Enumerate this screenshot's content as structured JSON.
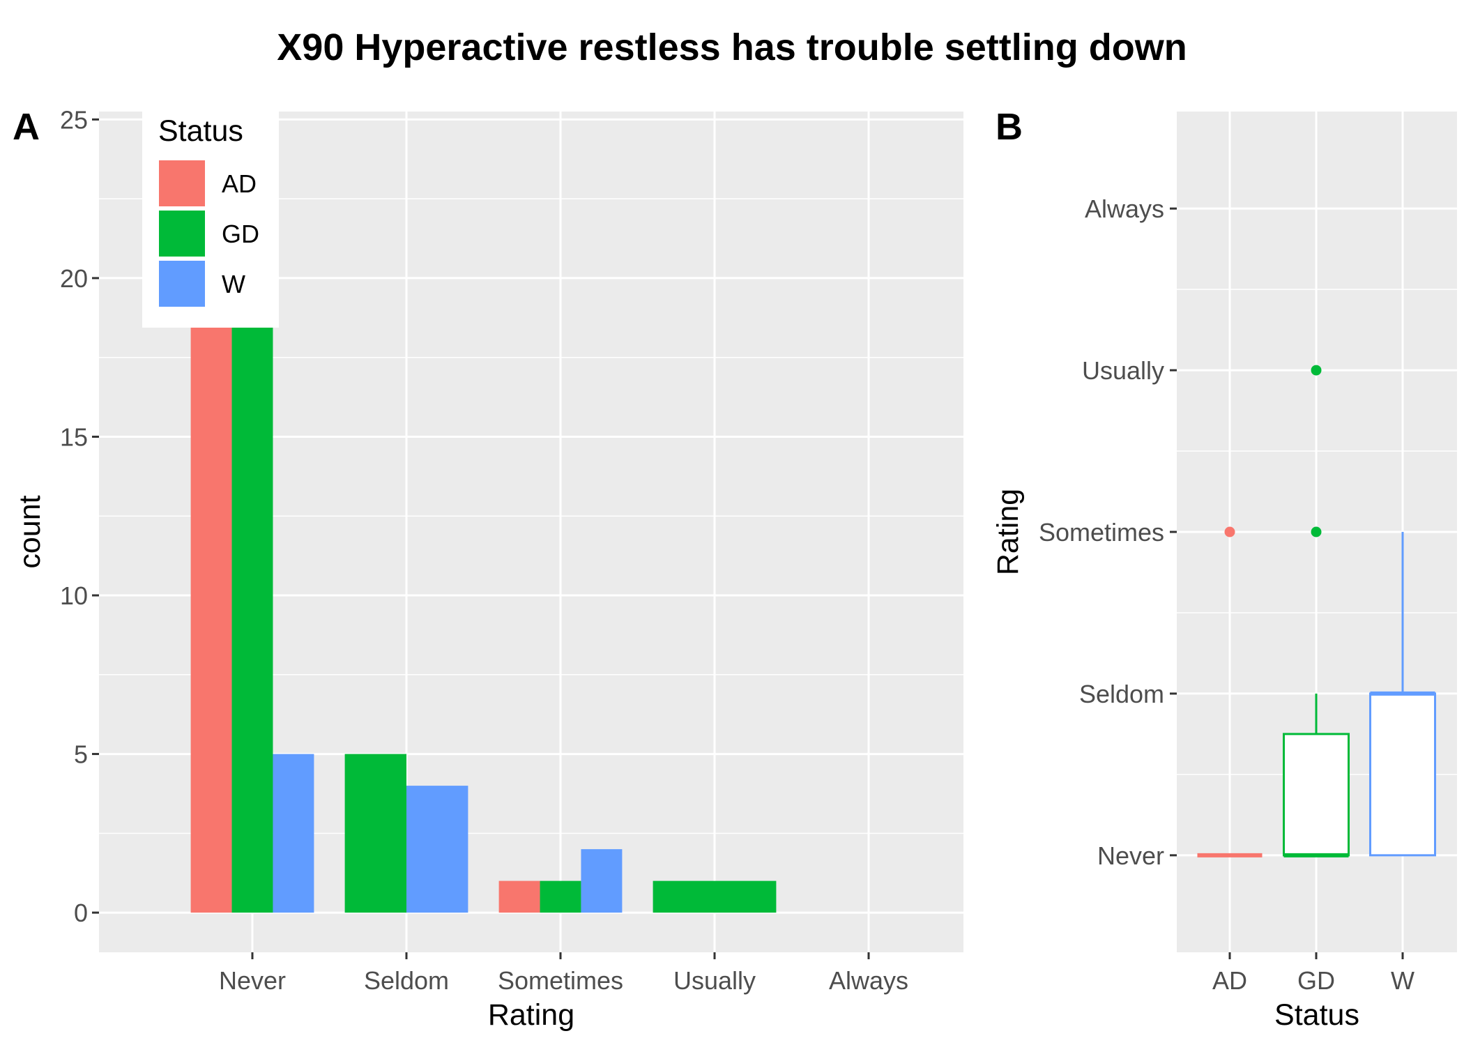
{
  "title": "X90 Hyperactive restless has trouble settling down",
  "colors": {
    "AD": "#F8766D",
    "GD": "#00BA38",
    "W": "#619CFF",
    "panel": "#EBEBEB",
    "grid": "#FFFFFF"
  },
  "chart_data": [
    {
      "panel": "A",
      "type": "bar",
      "position": "dodge",
      "xlabel": "Rating",
      "ylabel": "count",
      "categories": [
        "Never",
        "Seldom",
        "Sometimes",
        "Usually",
        "Always"
      ],
      "ylim": [
        -1.25,
        25.25
      ],
      "yticks": [
        0,
        5,
        10,
        15,
        20,
        25
      ],
      "grid": true,
      "legend": {
        "title": "Status",
        "placement": "top-left",
        "entries": [
          "AD",
          "GD",
          "W"
        ]
      },
      "bars": [
        {
          "category": "Never",
          "series": "AD",
          "value": 19
        },
        {
          "category": "Never",
          "series": "GD",
          "value": 19
        },
        {
          "category": "Never",
          "series": "W",
          "value": 5
        },
        {
          "category": "Seldom",
          "series": "GD",
          "value": 5
        },
        {
          "category": "Seldom",
          "series": "W",
          "value": 4
        },
        {
          "category": "Sometimes",
          "series": "AD",
          "value": 1
        },
        {
          "category": "Sometimes",
          "series": "GD",
          "value": 1
        },
        {
          "category": "Sometimes",
          "series": "W",
          "value": 2
        },
        {
          "category": "Usually",
          "series": "GD",
          "value": 1
        }
      ]
    },
    {
      "panel": "B",
      "type": "box",
      "xlabel": "Status",
      "ylabel": "Rating",
      "categories": [
        "AD",
        "GD",
        "W"
      ],
      "y_levels": [
        "Never",
        "Seldom",
        "Sometimes",
        "Usually",
        "Always"
      ],
      "ylim": [
        0.4,
        5.6
      ],
      "grid": true,
      "boxes": [
        {
          "group": "AD",
          "min": 1,
          "q1": 1,
          "median": 1,
          "q3": 1,
          "max": 1,
          "outliers": [
            3
          ]
        },
        {
          "group": "GD",
          "min": 1,
          "q1": 1,
          "median": 1,
          "q3": 1.75,
          "max": 2,
          "outliers": [
            3,
            4
          ]
        },
        {
          "group": "W",
          "min": 1,
          "q1": 1,
          "median": 2,
          "q3": 2,
          "max": 3,
          "outliers": []
        }
      ]
    }
  ]
}
